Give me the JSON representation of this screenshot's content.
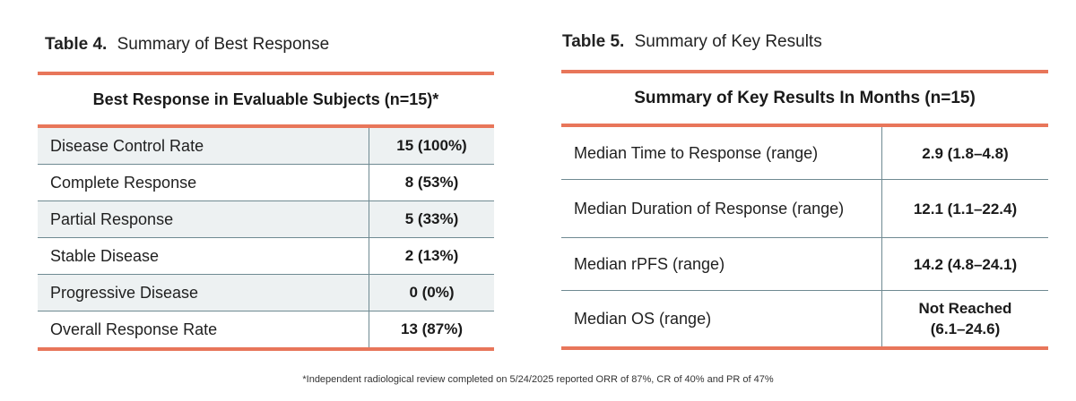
{
  "table4": {
    "number": "Table 4.",
    "title": "Summary of Best Response",
    "header": "Best Response in Evaluable Subjects (n=15)*",
    "rows": [
      {
        "label": "Disease Control Rate",
        "value": "15 (100%)"
      },
      {
        "label": "Complete Response",
        "value": "8 (53%)"
      },
      {
        "label": "Partial Response",
        "value": "5 (33%)"
      },
      {
        "label": "Stable Disease",
        "value": "2 (13%)"
      },
      {
        "label": "Progressive Disease",
        "value": "0 (0%)"
      },
      {
        "label": "Overall Response Rate",
        "value": "13 (87%)"
      }
    ]
  },
  "table5": {
    "number": "Table 5.",
    "title": "Summary of Key Results",
    "header": "Summary of Key Results In Months (n=15)",
    "rows": [
      {
        "label": "Median Time to Response (range)",
        "value": "2.9 (1.8–4.8)"
      },
      {
        "label": "Median Duration of Response (range)",
        "value": "12.1 (1.1–22.4)"
      },
      {
        "label": "Median rPFS (range)",
        "value": "14.2 (4.8–24.1)"
      },
      {
        "label": "Median OS (range)",
        "value": "Not Reached (6.1–24.6)"
      }
    ]
  },
  "footnote": "*Independent radiological review completed on 5/24/2025 reported ORR of 87%, CR of 40% and PR of 47%",
  "colors": {
    "accent": "#e8765a",
    "row_shade": "#edf1f2",
    "grid": "#6f8a92"
  }
}
